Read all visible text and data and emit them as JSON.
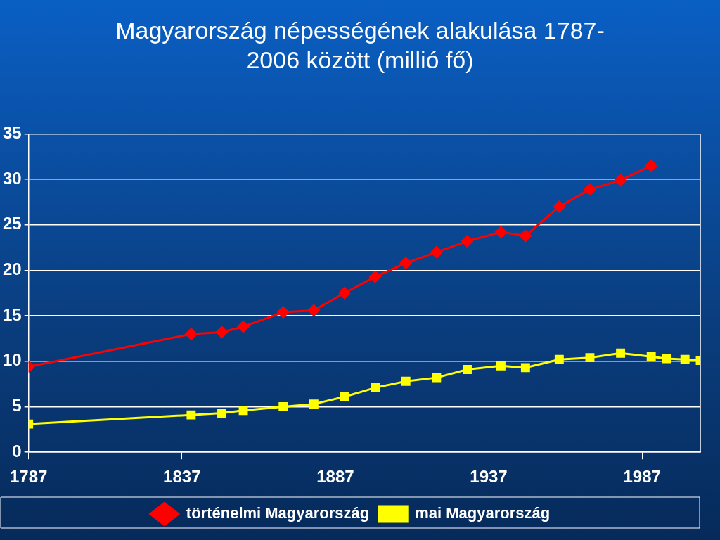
{
  "chart_data": {
    "type": "line",
    "title": "Magyarország népességének alakulása 1787-2006 között (millió fő)",
    "xlim": [
      1787,
      2006
    ],
    "xticks": [
      1787,
      1837,
      1887,
      1937,
      1987
    ],
    "ylim": [
      0,
      35
    ],
    "yticks": [
      0,
      5,
      10,
      15,
      20,
      25,
      30,
      35
    ],
    "grid": "y",
    "legend": "bottom",
    "series": [
      {
        "name": "történelmi Magyarország",
        "color": "#ff0000",
        "marker": "diamond",
        "x": [
          1787,
          1840,
          1850,
          1857,
          1870,
          1880,
          1890,
          1900,
          1910,
          1920,
          1930,
          1941,
          1949,
          1960,
          1970,
          1980,
          1990
        ],
        "values": [
          9.4,
          13.0,
          13.2,
          13.8,
          15.4,
          15.6,
          17.5,
          19.3,
          20.8,
          22.0,
          23.2,
          24.2,
          23.8,
          27.0,
          28.9,
          29.9,
          31.5
        ]
      },
      {
        "name": "mai Magyarország",
        "color": "#ffff00",
        "marker": "square",
        "x": [
          1787,
          1840,
          1850,
          1857,
          1870,
          1880,
          1890,
          1900,
          1910,
          1920,
          1930,
          1941,
          1949,
          1960,
          1970,
          1980,
          1990,
          1995,
          2001,
          2006
        ],
        "values": [
          3.1,
          4.1,
          4.3,
          4.6,
          5.0,
          5.3,
          6.1,
          7.1,
          7.8,
          8.2,
          9.1,
          9.5,
          9.3,
          10.2,
          10.4,
          10.9,
          10.5,
          10.3,
          10.2,
          10.1
        ]
      }
    ]
  }
}
